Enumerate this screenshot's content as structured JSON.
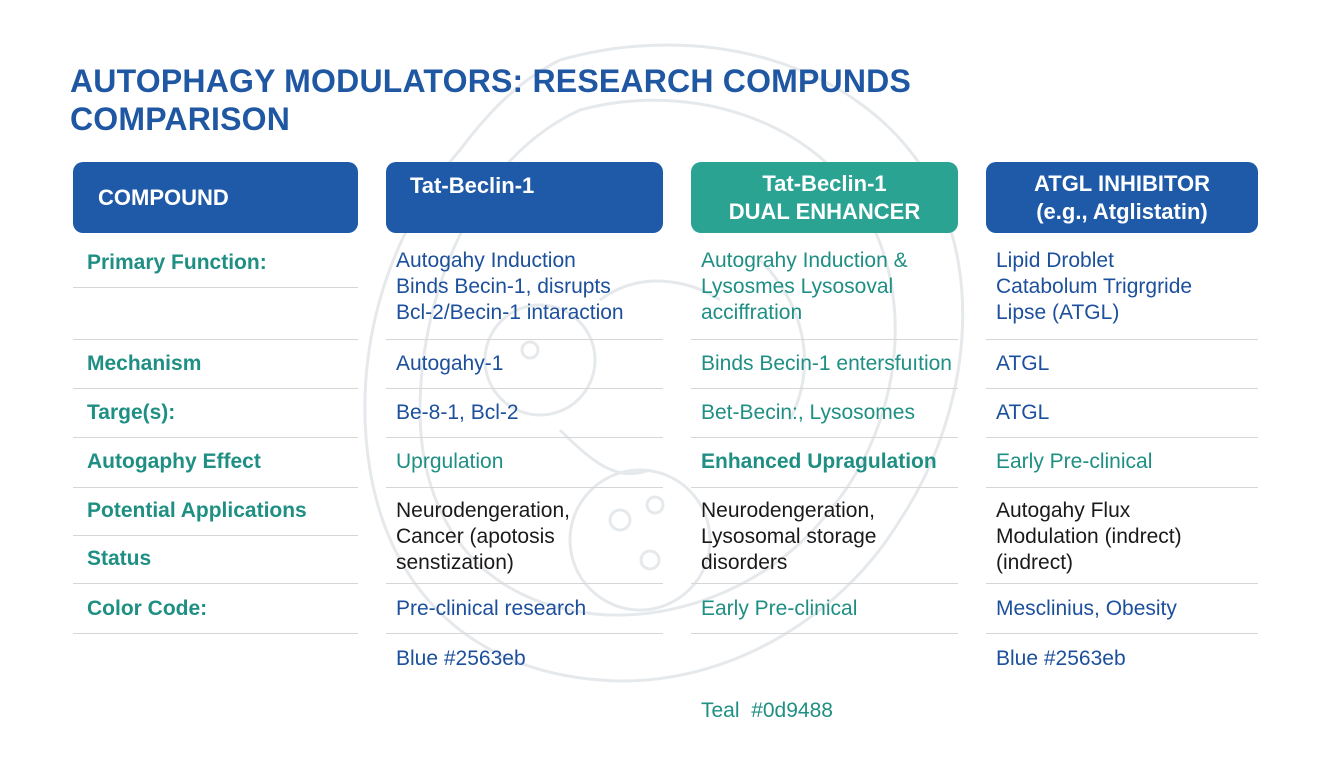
{
  "title_lines": [
    "AUTOPHAGY MODULATORS: RESEARCH COMPUNDS",
    "COMPARISON"
  ],
  "headers": [
    {
      "lines": [
        "COMPOUND"
      ]
    },
    {
      "lines": [
        "Tat-Beclin-1"
      ]
    },
    {
      "lines": [
        "Tat-Beclin-1",
        "DUAL ENHANCER"
      ]
    },
    {
      "lines": [
        "ATGL INHIBITOR",
        "(e.g., Atglistatin)"
      ]
    }
  ],
  "row_labels": [
    "Primary Function:",
    "Mechanism",
    "Targe(s):",
    "Autogaphy Effect",
    "Potential Applications",
    "Status",
    "Color Code:"
  ],
  "columns": [
    {
      "cells": [
        {
          "lines": [
            "Autogahy Induction",
            "Binds Becin-1, disrupts",
            "Bcl-2/Becin-1 intaraction"
          ]
        },
        {
          "lines": [
            "Autogahy-1"
          ]
        },
        {
          "lines": [
            "Be-8-1, Bcl-2"
          ]
        },
        {
          "lines": [
            "Uprgulation"
          ]
        },
        {
          "lines": [
            "Neurodengeration,",
            "Cancer (apotosis",
            "senstization)"
          ]
        },
        {
          "lines": [
            "Pre-clinical research"
          ]
        },
        {
          "lines": [
            "Blue #2563eb"
          ]
        }
      ]
    },
    {
      "cells": [
        {
          "lines": [
            "Autograhy Induction &",
            "Lysosmes Lysosoval",
            "acciffration"
          ]
        },
        {
          "lines": [
            "Binds Becin-1 entersfuıtion"
          ]
        },
        {
          "lines": [
            "Bet-Becin:, Lysosomes"
          ]
        },
        {
          "lines": [
            "Enhanced Upragulation"
          ]
        },
        {
          "lines": [
            "Neurodengeration,",
            "Lysosomal storage",
            "disorders"
          ]
        },
        {
          "lines": [
            "Early Pre-clinical"
          ]
        },
        {
          "lines": [
            "Teal  #0d9488"
          ]
        }
      ]
    },
    {
      "cells": [
        {
          "lines": [
            "Lipid Droblet",
            "Catabolum Trigrgride",
            "Lipse (ATGL)"
          ]
        },
        {
          "lines": [
            "ATGL"
          ]
        },
        {
          "lines": [
            "ATGL"
          ]
        },
        {
          "lines": [
            "Early Pre-clinical"
          ]
        },
        {
          "lines": [
            "Autogahy Flux",
            "Modulation (indrect)",
            "(indrect)"
          ]
        },
        {
          "lines": [
            "Mesclinius, Obesity"
          ]
        },
        {
          "lines": [
            "Blue #2563eb"
          ]
        }
      ]
    }
  ],
  "colors": {
    "title": "#1f57a3",
    "header_blue": "#1f5aa8",
    "header_teal": "#2aa393",
    "label_teal": "#1f8f84",
    "text_blue": "#1c4f9c",
    "text_dark": "#1a1a1a"
  }
}
